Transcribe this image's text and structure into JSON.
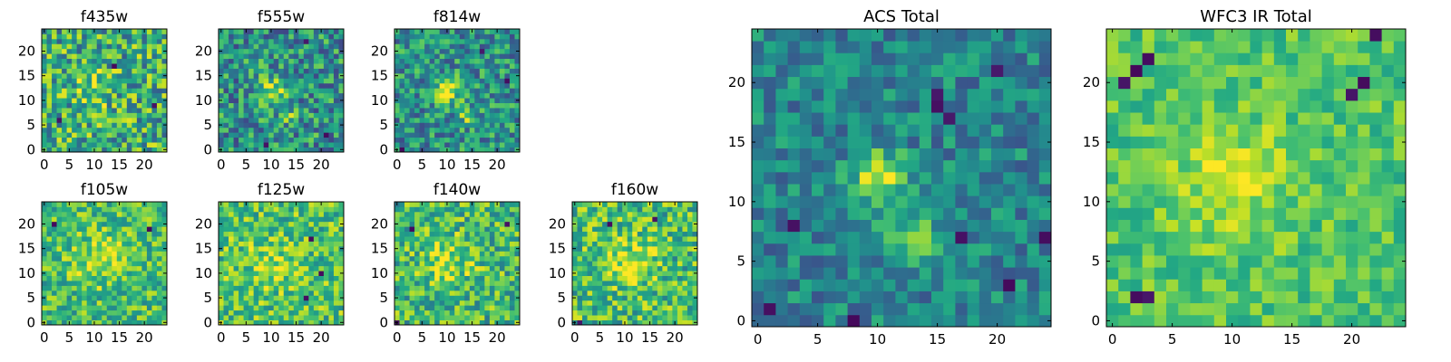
{
  "figure": {
    "colormap": "viridis",
    "colors": {
      "low": "#440154",
      "mid": "#21918c",
      "high": "#fde725",
      "frame": "#000000"
    }
  },
  "chart_data": [
    {
      "type": "heatmap",
      "title": "f435w",
      "xlabel": "",
      "ylabel": "",
      "xlim": [
        0,
        24
      ],
      "ylim": [
        0,
        24
      ],
      "xticks": [
        "0",
        "5",
        "10",
        "15",
        "20"
      ],
      "yticks": [
        "0",
        "5",
        "10",
        "15",
        "20"
      ],
      "grid_size": [
        25,
        25
      ],
      "noise": 0.55,
      "bias": 0.62,
      "peaks": [
        {
          "x": 10,
          "y": 12,
          "amp": 0.25,
          "sigma": 2.5
        }
      ],
      "holes": [
        {
          "x": 14,
          "y": 17
        },
        {
          "x": 3,
          "y": 6
        },
        {
          "x": 22,
          "y": 9
        }
      ]
    },
    {
      "type": "heatmap",
      "title": "f555w",
      "xlabel": "",
      "ylabel": "",
      "xlim": [
        0,
        24
      ],
      "ylim": [
        0,
        24
      ],
      "xticks": [
        "0",
        "5",
        "10",
        "15",
        "20"
      ],
      "yticks": [
        "0",
        "5",
        "10",
        "15",
        "20"
      ],
      "grid_size": [
        25,
        25
      ],
      "noise": 0.5,
      "bias": 0.5,
      "peaks": [
        {
          "x": 10,
          "y": 12,
          "amp": 0.4,
          "sigma": 1.8
        },
        {
          "x": 13,
          "y": 7,
          "amp": 0.25,
          "sigma": 1.2
        }
      ],
      "holes": [
        {
          "x": 17,
          "y": 22
        },
        {
          "x": 9,
          "y": 1
        },
        {
          "x": 21,
          "y": 3
        }
      ]
    },
    {
      "type": "heatmap",
      "title": "f814w",
      "xlabel": "",
      "ylabel": "",
      "xlim": [
        0,
        24
      ],
      "ylim": [
        0,
        24
      ],
      "xticks": [
        "0",
        "5",
        "10",
        "15",
        "20"
      ],
      "yticks": [
        "0",
        "5",
        "10",
        "15",
        "20"
      ],
      "grid_size": [
        25,
        25
      ],
      "noise": 0.45,
      "bias": 0.5,
      "peaks": [
        {
          "x": 10,
          "y": 12,
          "amp": 0.45,
          "sigma": 2.0
        },
        {
          "x": 14,
          "y": 7,
          "amp": 0.3,
          "sigma": 1.3
        }
      ],
      "holes": [
        {
          "x": 17,
          "y": 20
        },
        {
          "x": 1,
          "y": 0
        },
        {
          "x": 22,
          "y": 14
        }
      ]
    },
    {
      "type": "heatmap",
      "title": "f105w",
      "xlabel": "",
      "ylabel": "",
      "xlim": [
        0,
        24
      ],
      "ylim": [
        0,
        24
      ],
      "xticks": [
        "0",
        "5",
        "10",
        "15",
        "20"
      ],
      "yticks": [
        "0",
        "5",
        "10",
        "15",
        "20"
      ],
      "grid_size": [
        25,
        25
      ],
      "noise": 0.4,
      "bias": 0.68,
      "peaks": [
        {
          "x": 11,
          "y": 13,
          "amp": 0.2,
          "sigma": 4
        }
      ],
      "holes": [
        {
          "x": 21,
          "y": 19
        },
        {
          "x": 2,
          "y": 20
        }
      ]
    },
    {
      "type": "heatmap",
      "title": "f125w",
      "xlabel": "",
      "ylabel": "",
      "xlim": [
        0,
        24
      ],
      "ylim": [
        0,
        24
      ],
      "xticks": [
        "0",
        "5",
        "10",
        "15",
        "20"
      ],
      "yticks": [
        "0",
        "5",
        "10",
        "15",
        "20"
      ],
      "grid_size": [
        25,
        25
      ],
      "noise": 0.42,
      "bias": 0.7,
      "peaks": [
        {
          "x": 10,
          "y": 12,
          "amp": 0.15,
          "sigma": 4
        }
      ],
      "holes": [
        {
          "x": 18,
          "y": 17
        },
        {
          "x": 17,
          "y": 5
        },
        {
          "x": 20,
          "y": 10
        }
      ]
    },
    {
      "type": "heatmap",
      "title": "f140w",
      "xlabel": "",
      "ylabel": "",
      "xlim": [
        0,
        24
      ],
      "ylim": [
        0,
        24
      ],
      "xticks": [
        "0",
        "5",
        "10",
        "15",
        "20"
      ],
      "yticks": [
        "0",
        "5",
        "10",
        "15",
        "20"
      ],
      "grid_size": [
        25,
        25
      ],
      "noise": 0.45,
      "bias": 0.66,
      "peaks": [
        {
          "x": 10,
          "y": 12,
          "amp": 0.25,
          "sigma": 3.5
        }
      ],
      "holes": [
        {
          "x": 0,
          "y": 0
        },
        {
          "x": 22,
          "y": 20
        },
        {
          "x": 3,
          "y": 19
        }
      ]
    },
    {
      "type": "heatmap",
      "title": "f160w",
      "xlabel": "",
      "ylabel": "",
      "xlim": [
        0,
        24
      ],
      "ylim": [
        0,
        24
      ],
      "xticks": [
        "0",
        "5",
        "10",
        "15",
        "20"
      ],
      "yticks": [
        "0",
        "5",
        "10",
        "15",
        "20"
      ],
      "grid_size": [
        25,
        25
      ],
      "noise": 0.45,
      "bias": 0.68,
      "peaks": [
        {
          "x": 11,
          "y": 12,
          "amp": 0.25,
          "sigma": 3.5
        }
      ],
      "holes": [
        {
          "x": 1,
          "y": 0
        },
        {
          "x": 7,
          "y": 20
        },
        {
          "x": 16,
          "y": 21
        }
      ]
    },
    {
      "type": "heatmap",
      "title": "ACS Total",
      "xlabel": "",
      "ylabel": "",
      "xlim": [
        0,
        24
      ],
      "ylim": [
        0,
        24
      ],
      "xticks": [
        "0",
        "5",
        "10",
        "15",
        "20"
      ],
      "yticks": [
        "0",
        "5",
        "10",
        "15",
        "20"
      ],
      "grid_size": [
        25,
        25
      ],
      "noise": 0.32,
      "bias": 0.45,
      "peaks": [
        {
          "x": 10,
          "y": 12,
          "amp": 0.5,
          "sigma": 1.6
        },
        {
          "x": 13,
          "y": 7,
          "amp": 0.35,
          "sigma": 1.4
        }
      ],
      "holes": [
        {
          "x": 20,
          "y": 21
        },
        {
          "x": 15,
          "y": 18
        },
        {
          "x": 16,
          "y": 17
        },
        {
          "x": 15,
          "y": 19
        },
        {
          "x": 3,
          "y": 8
        },
        {
          "x": 17,
          "y": 7
        },
        {
          "x": 21,
          "y": 3
        },
        {
          "x": 1,
          "y": 1
        },
        {
          "x": 8,
          "y": 0
        },
        {
          "x": 24,
          "y": 7
        }
      ]
    },
    {
      "type": "heatmap",
      "title": "WFC3 IR Total",
      "xlabel": "",
      "ylabel": "",
      "xlim": [
        0,
        24
      ],
      "ylim": [
        0,
        24
      ],
      "xticks": [
        "0",
        "5",
        "10",
        "15",
        "20"
      ],
      "yticks": [
        "0",
        "5",
        "10",
        "15",
        "20"
      ],
      "grid_size": [
        25,
        25
      ],
      "noise": 0.25,
      "bias": 0.72,
      "peaks": [
        {
          "x": 10,
          "y": 12,
          "amp": 0.2,
          "sigma": 3.5
        }
      ],
      "holes": [
        {
          "x": 3,
          "y": 22
        },
        {
          "x": 2,
          "y": 21
        },
        {
          "x": 1,
          "y": 20
        },
        {
          "x": 21,
          "y": 20
        },
        {
          "x": 20,
          "y": 19
        },
        {
          "x": 2,
          "y": 2
        },
        {
          "x": 3,
          "y": 2
        },
        {
          "x": 22,
          "y": 24
        }
      ]
    }
  ]
}
